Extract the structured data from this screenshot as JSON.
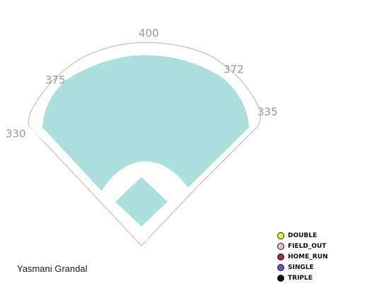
{
  "player_name": "Yasmani Grandal",
  "chart_data": {
    "type": "scatter",
    "title": "",
    "field": {
      "distances": [
        "330",
        "375",
        "400",
        "372",
        "335"
      ]
    },
    "legend": [
      {
        "name": "DOUBLE",
        "color": "#f5ea2c"
      },
      {
        "name": "FIELD_OUT",
        "color": "#f7b8c0"
      },
      {
        "name": "HOME_RUN",
        "color": "#a0254f"
      },
      {
        "name": "SINGLE",
        "color": "#6e4bc7"
      },
      {
        "name": "TRIPLE",
        "color": "#111111"
      }
    ],
    "series": [
      {
        "name": "DOUBLE",
        "points": []
      },
      {
        "name": "FIELD_OUT",
        "points": []
      },
      {
        "name": "HOME_RUN",
        "points": []
      },
      {
        "name": "SINGLE",
        "points": []
      },
      {
        "name": "TRIPLE",
        "points": []
      }
    ]
  }
}
